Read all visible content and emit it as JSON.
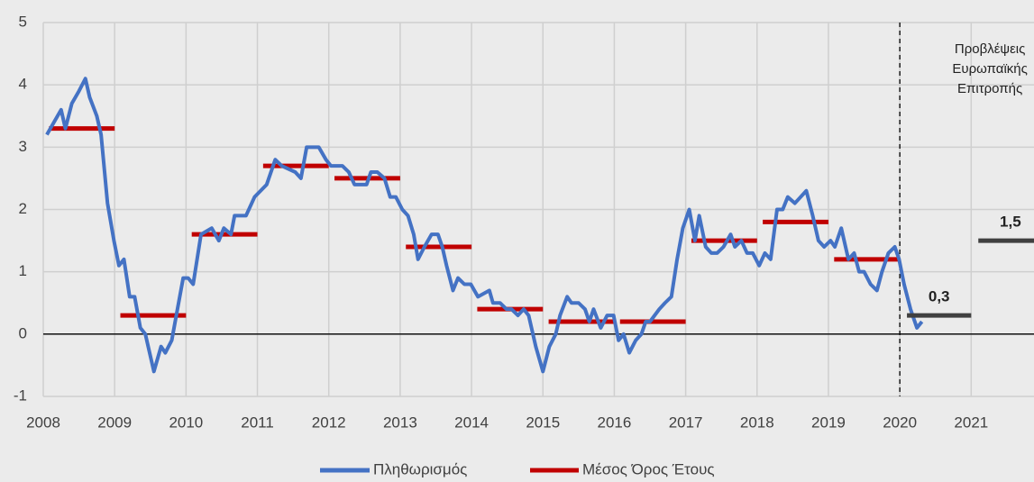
{
  "chart_data": {
    "type": "line",
    "x": [
      2008.05,
      2008.25,
      2008.31,
      2008.4,
      2008.5,
      2008.59,
      2008.65,
      2008.75,
      2008.81,
      2008.9,
      2008.99,
      2009.06,
      2009.13,
      2009.21,
      2009.28,
      2009.36,
      2009.43,
      2009.55,
      2009.65,
      2009.71,
      2009.8,
      2009.88,
      2009.96,
      2010.03,
      2010.1,
      2010.21,
      2010.36,
      2010.46,
      2010.53,
      2010.63,
      2010.68,
      2010.84,
      2010.96,
      2011.13,
      2011.25,
      2011.34,
      2011.53,
      2011.61,
      2011.69,
      2011.86,
      2011.96,
      2012.03,
      2012.19,
      2012.28,
      2012.36,
      2012.53,
      2012.59,
      2012.68,
      2012.78,
      2012.86,
      2012.94,
      2013.03,
      2013.11,
      2013.19,
      2013.25,
      2013.34,
      2013.44,
      2013.53,
      2013.59,
      2013.65,
      2013.74,
      2013.81,
      2013.9,
      2013.99,
      2014.09,
      2014.25,
      2014.3,
      2014.4,
      2014.49,
      2014.56,
      2014.65,
      2014.73,
      2014.8,
      2014.9,
      2015.0,
      2015.09,
      2015.18,
      2015.24,
      2015.34,
      2015.4,
      2015.5,
      2015.59,
      2015.65,
      2015.71,
      2015.81,
      2015.9,
      2015.99,
      2016.06,
      2016.13,
      2016.21,
      2016.3,
      2016.38,
      2016.44,
      2016.5,
      2016.63,
      2016.71,
      2016.8,
      2016.88,
      2016.96,
      2017.05,
      2017.13,
      2017.19,
      2017.28,
      2017.36,
      2017.44,
      2017.53,
      2017.63,
      2017.69,
      2017.78,
      2017.86,
      2017.94,
      2018.03,
      2018.11,
      2018.19,
      2018.28,
      2018.36,
      2018.43,
      2018.53,
      2018.61,
      2018.69,
      2018.78,
      2018.86,
      2018.94,
      2019.03,
      2019.09,
      2019.18,
      2019.28,
      2019.36,
      2019.43,
      2019.5,
      2019.59,
      2019.68,
      2019.75,
      2019.84,
      2019.93,
      2019.99,
      2020.06,
      2020.15,
      2020.24,
      2020.31
    ],
    "series": [
      {
        "name": "Πληθωρισμός",
        "color": "#4472c4",
        "values": [
          3.2,
          3.6,
          3.3,
          3.7,
          3.9,
          4.1,
          3.8,
          3.5,
          3.2,
          2.1,
          1.5,
          1.1,
          1.2,
          0.6,
          0.6,
          0.1,
          0.0,
          -0.6,
          -0.2,
          -0.3,
          -0.1,
          0.4,
          0.9,
          0.9,
          0.8,
          1.6,
          1.7,
          1.5,
          1.7,
          1.6,
          1.9,
          1.9,
          2.2,
          2.4,
          2.8,
          2.7,
          2.6,
          2.5,
          3.0,
          3.0,
          2.8,
          2.7,
          2.7,
          2.6,
          2.4,
          2.4,
          2.6,
          2.6,
          2.5,
          2.2,
          2.2,
          2.0,
          1.9,
          1.6,
          1.2,
          1.4,
          1.6,
          1.6,
          1.4,
          1.1,
          0.7,
          0.9,
          0.8,
          0.8,
          0.6,
          0.7,
          0.5,
          0.5,
          0.4,
          0.4,
          0.3,
          0.4,
          0.3,
          -0.2,
          -0.6,
          -0.2,
          0.0,
          0.3,
          0.6,
          0.5,
          0.5,
          0.4,
          0.2,
          0.4,
          0.1,
          0.3,
          0.3,
          -0.1,
          0.0,
          -0.3,
          -0.1,
          0.0,
          0.2,
          0.2,
          0.4,
          0.5,
          0.6,
          1.2,
          1.7,
          2.0,
          1.5,
          1.9,
          1.4,
          1.3,
          1.3,
          1.4,
          1.6,
          1.4,
          1.5,
          1.3,
          1.3,
          1.1,
          1.3,
          1.2,
          2.0,
          2.0,
          2.2,
          2.1,
          2.2,
          2.3,
          1.9,
          1.5,
          1.4,
          1.5,
          1.4,
          1.7,
          1.2,
          1.3,
          1.0,
          1.0,
          0.8,
          0.7,
          1.0,
          1.3,
          1.4,
          1.2,
          0.8,
          0.4,
          0.1,
          0.2
        ]
      }
    ],
    "annual_average": {
      "name": "Μέσος Όρος Έτους",
      "color": "#c00000",
      "x": [
        2008,
        2009,
        2010,
        2011,
        2012,
        2013,
        2014,
        2015,
        2016,
        2017,
        2018,
        2019
      ],
      "values": [
        3.3,
        0.3,
        1.6,
        2.7,
        2.5,
        1.4,
        0.4,
        0.2,
        0.2,
        1.5,
        1.8,
        1.2
      ]
    },
    "forecast": {
      "color": "#404040",
      "x": [
        2020,
        2021
      ],
      "values": [
        0.3,
        1.5
      ],
      "value_labels": [
        "0,3",
        "1,5"
      ]
    },
    "forecast_start": 2020,
    "annotation": [
      "Προβλέψεις",
      "Ευρωπαϊκής",
      "Επιτροπής"
    ],
    "xlim": [
      2008,
      2021.88
    ],
    "ylim": [
      -1,
      5
    ],
    "xticks": [
      2008,
      2009,
      2010,
      2011,
      2012,
      2013,
      2014,
      2015,
      2016,
      2017,
      2018,
      2019,
      2020,
      2021
    ],
    "yticks": [
      -1,
      0,
      1,
      2,
      3,
      4,
      5
    ],
    "grid": true,
    "legend": "bottom"
  }
}
